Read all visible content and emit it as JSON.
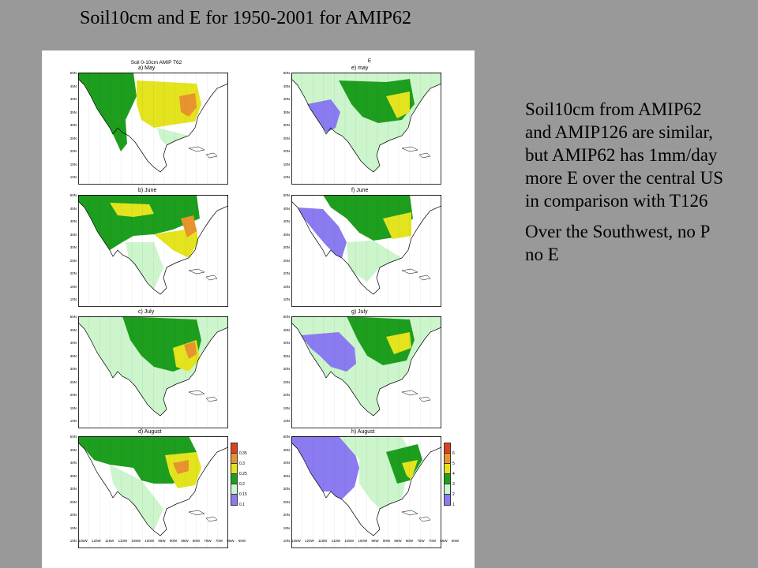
{
  "slide": {
    "title": "Soil10cm and E for 1950-2001 for AMIP62",
    "paragraphs": [
      "Soil10cm from AMIP62 and AMIP126 are similar, but AMIP62 has 1mm/day more E over the central US in comparison with T126",
      "Over the Southwest, no P no E"
    ]
  },
  "figure": {
    "left_header": "Soil 0-10cm AMIP T62",
    "right_header": "E",
    "left_panels": [
      "a) May",
      "b) June",
      "c) July",
      "d) August"
    ],
    "right_panels": [
      "e) may",
      "f) June",
      "g) July",
      "h) August"
    ],
    "lat_labels": [
      "50N",
      "45N",
      "40N",
      "35N",
      "30N",
      "25N",
      "20N",
      "15N",
      "10N"
    ],
    "lon_labels": "125W 120W 115W 110W 105W 100W 95W 90W 85W 80W 75W 70W 65W 60W",
    "soil_colorbar": [
      "0.35",
      "0.3",
      "0.25",
      "0.2",
      "0.15",
      "0.1"
    ],
    "e_colorbar": [
      "6",
      "5",
      "4",
      "3",
      "2",
      "1"
    ],
    "colors": {
      "purple": "#8a7cf0",
      "light_green": "#ccf5cc",
      "green": "#1e9e1e",
      "yellow": "#e4e41e",
      "orange": "#e8942e",
      "red": "#e0401e"
    }
  }
}
